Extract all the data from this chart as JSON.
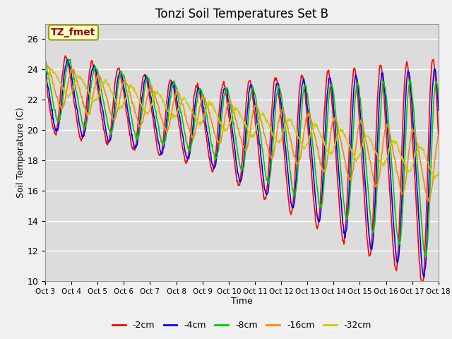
{
  "title": "Tonzi Soil Temperatures Set B",
  "xlabel": "Time",
  "ylabel": "Soil Temperature (C)",
  "ylim": [
    10,
    27
  ],
  "xlim": [
    0,
    360
  ],
  "annotation": "TZ_fmet",
  "legend_labels": [
    "-2cm",
    "-4cm",
    "-8cm",
    "-16cm",
    "-32cm"
  ],
  "legend_colors": [
    "#ff0000",
    "#0000ff",
    "#00cc00",
    "#ff8800",
    "#cccc00"
  ],
  "line_width": 1.2,
  "bg_color": "#dcdcdc",
  "xtick_labels": [
    "Oct 3",
    "Oct 4",
    "Oct 5",
    "Oct 6",
    "Oct 7",
    "Oct 8",
    "Oct 9",
    "Oct 10",
    "Oct 11",
    "Oct 12",
    "Oct 13",
    "Oct 14",
    "Oct 15",
    "Oct 16",
    "Oct 17",
    "Oct 18"
  ],
  "grid_color": "#ffffff",
  "figwidth": 6.4,
  "figheight": 4.8,
  "dpi": 100
}
